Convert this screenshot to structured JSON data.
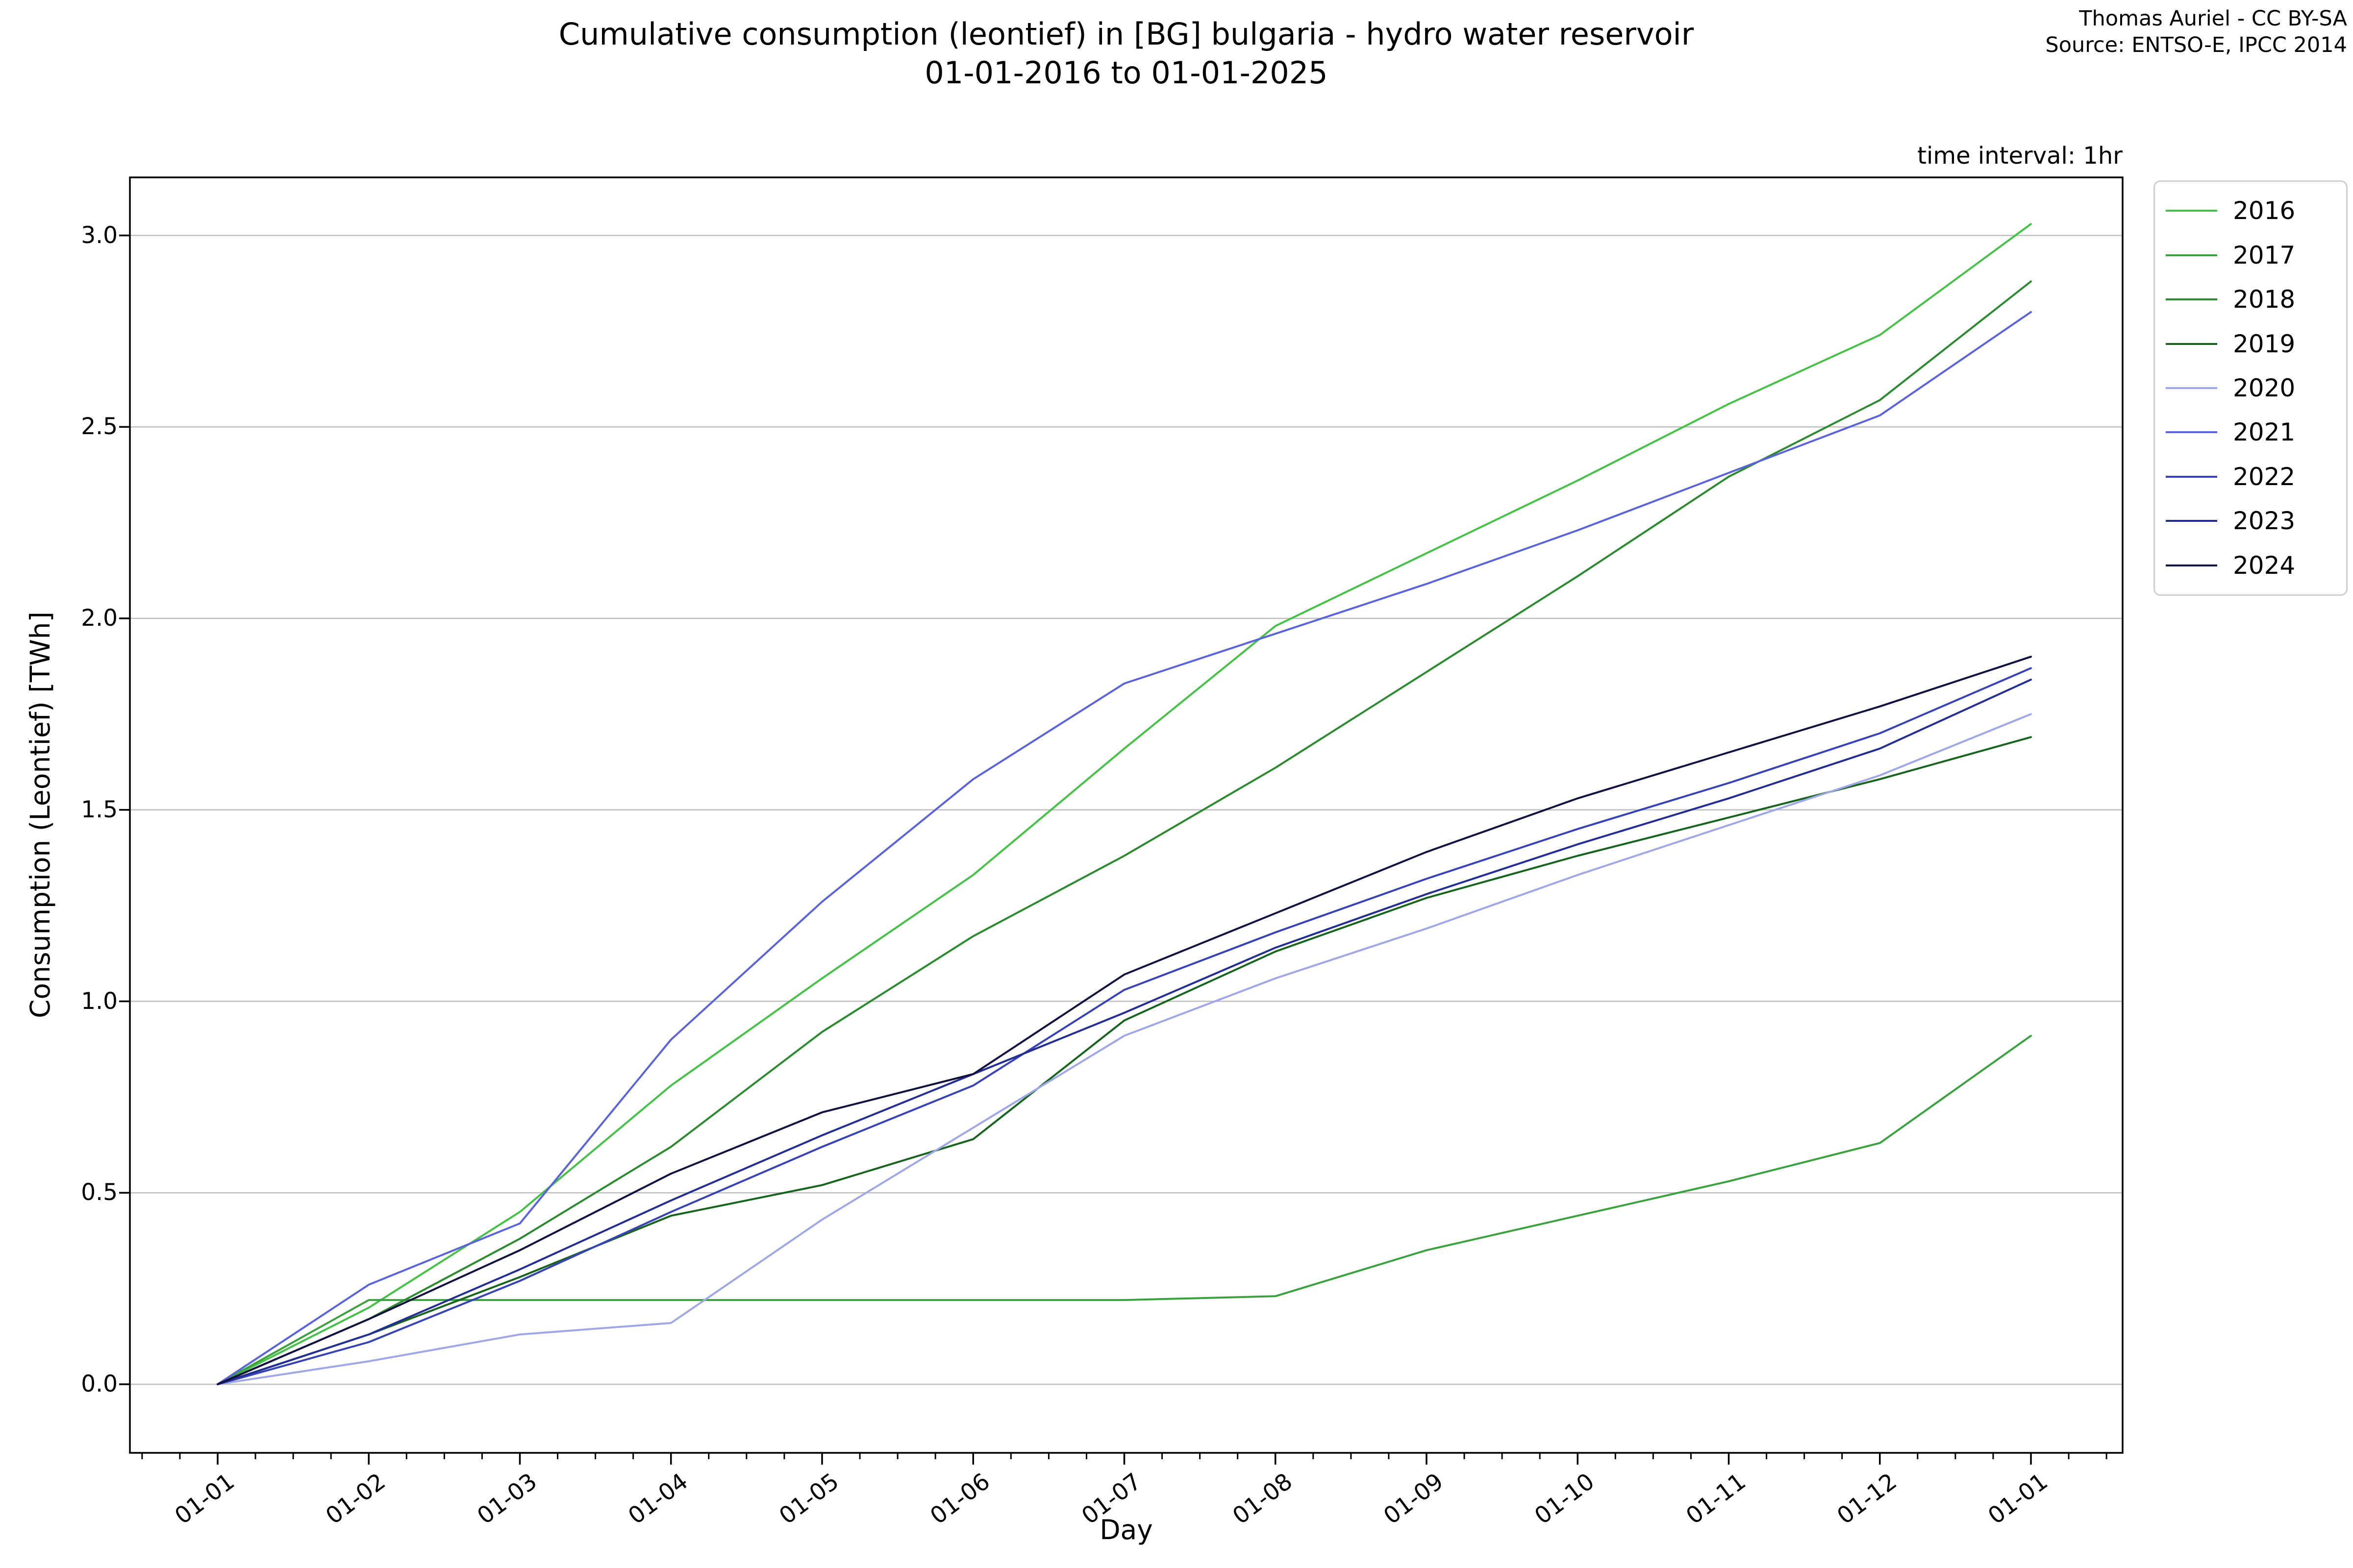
{
  "title": {
    "line1": "Cumulative consumption (leontief) in [BG] bulgaria - hydro water reservoir",
    "line2": "01-01-2016 to 01-01-2025"
  },
  "attribution": {
    "line1": "Thomas Auriel - CC BY-SA",
    "line2": "Source: ENTSO-E, IPCC 2014"
  },
  "annotation": "time interval: 1hr",
  "chart_data": {
    "type": "line",
    "title": "Cumulative consumption (leontief) in [BG] bulgaria - hydro water reservoir 01-01-2016 to 01-01-2025",
    "xlabel": "Day",
    "ylabel": "Consumption (Leontief) [TWh]",
    "x_ticklabels": [
      "01-01",
      "01-02",
      "01-03",
      "01-04",
      "01-05",
      "01-06",
      "01-07",
      "01-08",
      "01-09",
      "01-10",
      "01-11",
      "01-12",
      "01-01"
    ],
    "y_ticks": [
      "0.0",
      "0.5",
      "1.0",
      "1.5",
      "2.0",
      "2.5",
      "3.0"
    ],
    "ylim": [
      -0.18,
      3.15
    ],
    "grid": "horizontal",
    "legend_position": "upper-right-outside",
    "colors": {
      "grid": "#bfbfbf",
      "spine": "#000000",
      "background": "#ffffff"
    },
    "series": [
      {
        "name": "2016",
        "color": "#44c146",
        "values": [
          0,
          0.2,
          0.45,
          0.78,
          1.06,
          1.33,
          1.66,
          1.98,
          2.17,
          2.36,
          2.56,
          2.74,
          3.03
        ]
      },
      {
        "name": "2017",
        "color": "#3aa13e",
        "values": [
          0,
          0.22,
          0.22,
          0.22,
          0.22,
          0.22,
          0.22,
          0.23,
          0.35,
          0.44,
          0.53,
          0.63,
          0.91
        ]
      },
      {
        "name": "2018",
        "color": "#2b8a2f",
        "values": [
          0,
          0.17,
          0.38,
          0.62,
          0.92,
          1.17,
          1.38,
          1.61,
          1.86,
          2.11,
          2.37,
          2.57,
          2.88
        ]
      },
      {
        "name": "2019",
        "color": "#17641f",
        "values": [
          0,
          0.13,
          0.28,
          0.44,
          0.52,
          0.64,
          0.95,
          1.13,
          1.27,
          1.38,
          1.48,
          1.58,
          1.69
        ]
      },
      {
        "name": "2020",
        "color": "#9fa7e6",
        "values": [
          0,
          0.06,
          0.13,
          0.16,
          0.43,
          0.67,
          0.91,
          1.06,
          1.19,
          1.33,
          1.46,
          1.59,
          1.75
        ]
      },
      {
        "name": "2021",
        "color": "#5a64d8",
        "values": [
          0,
          0.26,
          0.42,
          0.9,
          1.26,
          1.58,
          1.83,
          1.96,
          2.09,
          2.23,
          2.38,
          2.53,
          2.8
        ]
      },
      {
        "name": "2022",
        "color": "#3742b5",
        "values": [
          0,
          0.11,
          0.27,
          0.45,
          0.62,
          0.78,
          1.03,
          1.18,
          1.32,
          1.45,
          1.57,
          1.7,
          1.87
        ]
      },
      {
        "name": "2023",
        "color": "#232d92",
        "values": [
          0,
          0.13,
          0.3,
          0.48,
          0.65,
          0.81,
          0.97,
          1.14,
          1.28,
          1.41,
          1.53,
          1.66,
          1.84
        ]
      },
      {
        "name": "2024",
        "color": "#121240",
        "values": [
          0,
          0.17,
          0.35,
          0.55,
          0.71,
          0.81,
          1.07,
          1.23,
          1.39,
          1.53,
          1.65,
          1.77,
          1.9
        ]
      }
    ]
  }
}
